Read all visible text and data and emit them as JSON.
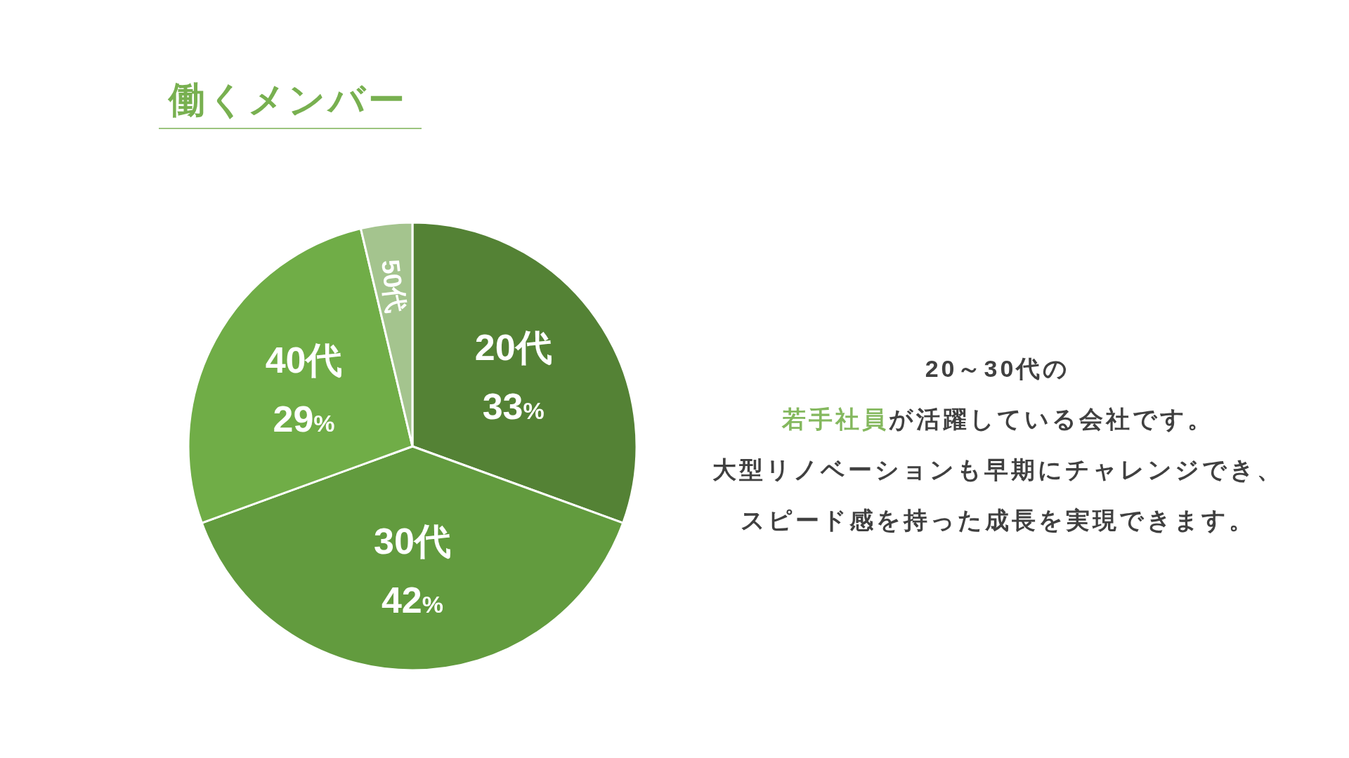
{
  "chart_data": {
    "type": "pie",
    "title": "働くメンバー",
    "categories": [
      "20代",
      "30代",
      "40代",
      "50代"
    ],
    "values": [
      33,
      42,
      29,
      4
    ],
    "colors": [
      "#548235",
      "#629b3e",
      "#70ad47",
      "#a4c48e"
    ],
    "value_labels": [
      "33%",
      "42%",
      "29%",
      null
    ],
    "annotations": [
      "20～30代の",
      "若手社員",
      "が活躍している会社です。",
      "大型リノベーションも早期にチャレンジでき、",
      "スピード感を持った成長を実現できます。"
    ]
  }
}
